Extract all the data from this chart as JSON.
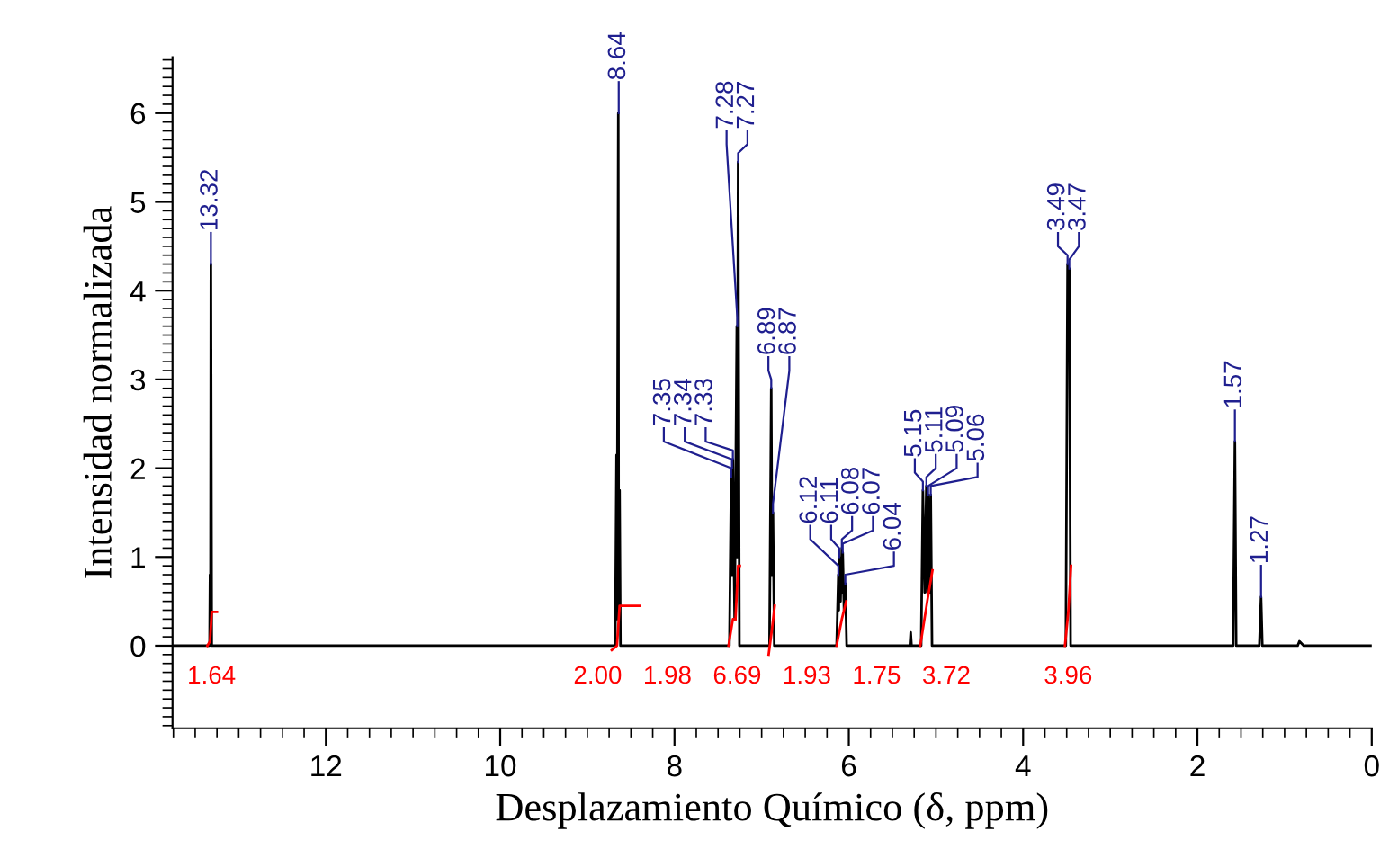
{
  "chart_data": {
    "type": "line",
    "xlabel": "Desplazamiento Químico (δ, ppm)",
    "ylabel": "Intensidad normalizada",
    "xlim": [
      13.76,
      0
    ],
    "ylim": [
      -0.93,
      6.63
    ],
    "xticks": [
      12,
      10,
      8,
      6,
      4,
      2,
      0
    ],
    "yticks": [
      0,
      1,
      2,
      3,
      4,
      5,
      6
    ],
    "grid": false,
    "legend": false,
    "marker": "none",
    "line_style": "solid",
    "series": [
      {
        "color": "#000000",
        "x": [
          13.76,
          13.34,
          13.335,
          13.33,
          13.325,
          13.32,
          13.31,
          8.68,
          8.665,
          8.66,
          8.645,
          8.64,
          8.63,
          8.62,
          7.37,
          7.35,
          7.345,
          7.34,
          7.335,
          7.33,
          7.31,
          7.285,
          7.28,
          7.27,
          7.255,
          6.91,
          6.89,
          6.88,
          6.87,
          6.855,
          6.14,
          6.12,
          6.115,
          6.11,
          6.095,
          6.08,
          6.075,
          6.07,
          6.055,
          6.04,
          6.025,
          5.3,
          5.29,
          5.28,
          5.17,
          5.15,
          5.13,
          5.11,
          5.1,
          5.09,
          5.075,
          5.06,
          5.045,
          3.51,
          3.49,
          3.48,
          3.47,
          3.455,
          1.59,
          1.57,
          1.555,
          1.29,
          1.27,
          1.255,
          0.85,
          0.83,
          0.78,
          0
        ],
        "values": [
          0,
          0,
          0,
          0.8,
          0.1,
          4.3,
          0,
          0,
          2.15,
          0.3,
          6.0,
          0.3,
          1.75,
          0,
          0,
          1.9,
          0.8,
          2.0,
          0.8,
          2.1,
          0.3,
          3.6,
          1.0,
          5.45,
          0,
          0,
          2.9,
          0.8,
          1.5,
          0,
          0,
          0.8,
          0.4,
          1.0,
          0.5,
          1.1,
          0.6,
          1.05,
          0.4,
          0.7,
          0,
          0,
          0.15,
          0,
          0,
          1.75,
          0.6,
          1.8,
          0.6,
          1.7,
          0.6,
          1.7,
          0,
          0,
          4.3,
          3.9,
          4.25,
          0,
          0,
          2.3,
          0,
          0,
          0.55,
          0,
          0,
          0.05,
          0,
          0
        ]
      },
      {
        "color": "#ff0000",
        "x": [
          13.36,
          13.33,
          13.31,
          13.25
        ],
        "values": [
          0,
          0.05,
          0.38,
          0.38
        ]
      },
      {
        "color": "#ff0000",
        "x": [
          8.72,
          8.66,
          8.63,
          8.4
        ],
        "values": [
          -0.05,
          0,
          0.45,
          0.45
        ]
      },
      {
        "color": "#ff0000",
        "x": [
          7.38,
          7.33,
          7.3
        ],
        "values": [
          0,
          0.3,
          0.3
        ]
      },
      {
        "color": "#ff0000",
        "x": [
          7.3,
          7.27,
          7.25
        ],
        "values": [
          0.3,
          0.9,
          0.9
        ]
      },
      {
        "color": "#ff0000",
        "x": [
          6.92,
          6.88,
          6.85
        ],
        "values": [
          -0.1,
          0.2,
          0.45
        ]
      },
      {
        "color": "#ff0000",
        "x": [
          6.14,
          6.08,
          6.03
        ],
        "values": [
          0,
          0.3,
          0.5
        ]
      },
      {
        "color": "#ff0000",
        "x": [
          5.18,
          5.1,
          5.04
        ],
        "values": [
          0,
          0.5,
          0.85
        ]
      },
      {
        "color": "#ff0000",
        "x": [
          3.52,
          3.48,
          3.45
        ],
        "values": [
          0,
          0.4,
          0.9
        ]
      }
    ],
    "annotations": [
      {
        "text": "13.32",
        "x": 13.32,
        "y": 4.3
      },
      {
        "text": "8.64",
        "x": 8.64,
        "y": 6.0
      },
      {
        "text": "7.35",
        "x": 7.35,
        "y": 1.9
      },
      {
        "text": "7.34",
        "x": 7.34,
        "y": 2.0
      },
      {
        "text": "7.33",
        "x": 7.33,
        "y": 2.1
      },
      {
        "text": "7.28",
        "x": 7.28,
        "y": 3.6
      },
      {
        "text": "7.27",
        "x": 7.27,
        "y": 5.45
      },
      {
        "text": "6.89",
        "x": 6.89,
        "y": 2.9
      },
      {
        "text": "6.87",
        "x": 6.87,
        "y": 1.5
      },
      {
        "text": "6.12",
        "x": 6.12,
        "y": 0.8
      },
      {
        "text": "6.11",
        "x": 6.11,
        "y": 1.0
      },
      {
        "text": "6.08",
        "x": 6.08,
        "y": 1.1
      },
      {
        "text": "6.07",
        "x": 6.07,
        "y": 1.05
      },
      {
        "text": "6.04",
        "x": 6.04,
        "y": 0.7
      },
      {
        "text": "5.15",
        "x": 5.15,
        "y": 1.75
      },
      {
        "text": "5.11",
        "x": 5.11,
        "y": 1.8
      },
      {
        "text": "5.09",
        "x": 5.09,
        "y": 1.7
      },
      {
        "text": "5.06",
        "x": 5.06,
        "y": 1.7
      },
      {
        "text": "3.49",
        "x": 3.49,
        "y": 4.3
      },
      {
        "text": "3.47",
        "x": 3.47,
        "y": 4.25
      },
      {
        "text": "1.57",
        "x": 1.57,
        "y": 2.3
      },
      {
        "text": "1.27",
        "x": 1.27,
        "y": 0.55
      },
      "1.64",
      "2.00",
      "1.98",
      "6.69",
      "1.93",
      "1.75",
      "3.72",
      "3.96"
    ]
  }
}
